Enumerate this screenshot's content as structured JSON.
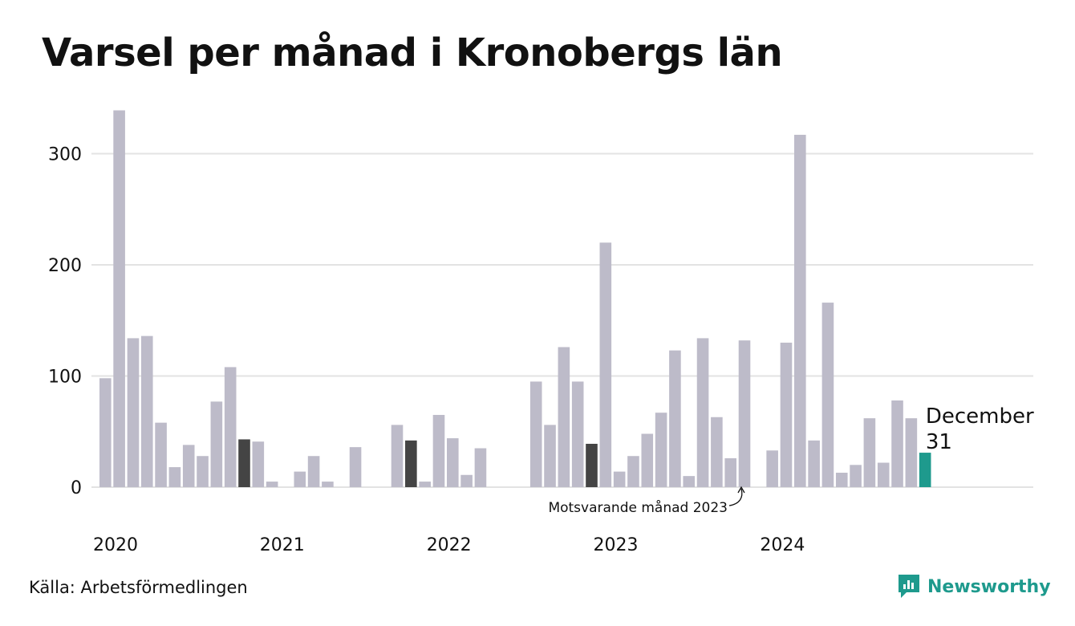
{
  "chart_data": {
    "type": "bar",
    "title": "Varsel per månad i Kronobergs län",
    "y_ticks": [
      "0",
      "100",
      "200",
      "300"
    ],
    "ylim": [
      0,
      340
    ],
    "grid": true,
    "x_year_labels": [
      "2020",
      "2021",
      "2022",
      "2023",
      "2024"
    ],
    "values": [
      98,
      339,
      134,
      136,
      58,
      18,
      38,
      28,
      77,
      108,
      43,
      41,
      5,
      0,
      14,
      28,
      5,
      0,
      36,
      0,
      0,
      56,
      42,
      5,
      65,
      44,
      11,
      35,
      0,
      0,
      0,
      95,
      56,
      126,
      95,
      39,
      220,
      14,
      28,
      48,
      67,
      123,
      10,
      134,
      63,
      26,
      132,
      0,
      33,
      130,
      317,
      42,
      166,
      13,
      20,
      62,
      22,
      78,
      62,
      31
    ],
    "highlighted_indices": [
      10,
      22,
      35
    ],
    "current_index": 59,
    "colors": {
      "default": "#bdbbc9",
      "highlight": "#444444",
      "current": "#1e9a8d",
      "grid": "#e3e3e3"
    },
    "current_label": {
      "month": "December",
      "value": "31"
    },
    "annotation": "Motsvarande månad 2023"
  },
  "source": "Källa: Arbetsförmedlingen",
  "brand": {
    "name": "Newsworthy",
    "icon": "newsworthy-logo-icon"
  }
}
